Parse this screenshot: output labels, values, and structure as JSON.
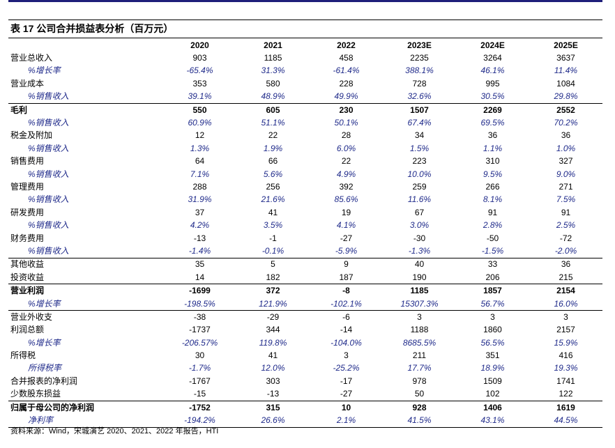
{
  "title": "表 17 公司合并损益表分析（百万元）",
  "columns": [
    "",
    "2020",
    "2021",
    "2022",
    "2023E",
    "2024E",
    "2025E"
  ],
  "rows": [
    {
      "label": "营业总收入",
      "values": [
        "903",
        "1185",
        "458",
        "2235",
        "3264",
        "3637"
      ],
      "type": "normal"
    },
    {
      "label": "%增长率",
      "values": [
        "-65.4%",
        "31.3%",
        "-61.4%",
        "388.1%",
        "46.1%",
        "11.4%"
      ],
      "type": "pct"
    },
    {
      "label": "营业成本",
      "values": [
        "353",
        "580",
        "228",
        "728",
        "995",
        "1084"
      ],
      "type": "normal"
    },
    {
      "label": "%销售收入",
      "values": [
        "39.1%",
        "48.9%",
        "49.9%",
        "32.6%",
        "30.5%",
        "29.8%"
      ],
      "type": "pct"
    },
    {
      "label": "毛利",
      "values": [
        "550",
        "605",
        "230",
        "1507",
        "2269",
        "2552"
      ],
      "type": "bold",
      "sep": true
    },
    {
      "label": "%销售收入",
      "values": [
        "60.9%",
        "51.1%",
        "50.1%",
        "67.4%",
        "69.5%",
        "70.2%"
      ],
      "type": "pct"
    },
    {
      "label": "税金及附加",
      "values": [
        "12",
        "22",
        "28",
        "34",
        "36",
        "36"
      ],
      "type": "normal"
    },
    {
      "label": "%销售收入",
      "values": [
        "1.3%",
        "1.9%",
        "6.0%",
        "1.5%",
        "1.1%",
        "1.0%"
      ],
      "type": "pct"
    },
    {
      "label": "销售费用",
      "values": [
        "64",
        "66",
        "22",
        "223",
        "310",
        "327"
      ],
      "type": "normal"
    },
    {
      "label": "%销售收入",
      "values": [
        "7.1%",
        "5.6%",
        "4.9%",
        "10.0%",
        "9.5%",
        "9.0%"
      ],
      "type": "pct"
    },
    {
      "label": "管理费用",
      "values": [
        "288",
        "256",
        "392",
        "259",
        "266",
        "271"
      ],
      "type": "normal"
    },
    {
      "label": "%销售收入",
      "values": [
        "31.9%",
        "21.6%",
        "85.6%",
        "11.6%",
        "8.1%",
        "7.5%"
      ],
      "type": "pct"
    },
    {
      "label": "研发费用",
      "values": [
        "37",
        "41",
        "19",
        "67",
        "91",
        "91"
      ],
      "type": "normal"
    },
    {
      "label": "%销售收入",
      "values": [
        "4.2%",
        "3.5%",
        "4.1%",
        "3.0%",
        "2.8%",
        "2.5%"
      ],
      "type": "pct"
    },
    {
      "label": "财务费用",
      "values": [
        "-13",
        "-1",
        "-27",
        "-30",
        "-50",
        "-72"
      ],
      "type": "normal"
    },
    {
      "label": "%销售收入",
      "values": [
        "-1.4%",
        "-0.1%",
        "-5.9%",
        "-1.3%",
        "-1.5%",
        "-2.0%"
      ],
      "type": "pct"
    },
    {
      "label": "其他收益",
      "values": [
        "35",
        "5",
        "9",
        "40",
        "33",
        "36"
      ],
      "type": "normal",
      "sep": true
    },
    {
      "label": "投资收益",
      "values": [
        "14",
        "182",
        "187",
        "190",
        "206",
        "215"
      ],
      "type": "normal"
    },
    {
      "label": "营业利润",
      "values": [
        "-1699",
        "372",
        "-8",
        "1185",
        "1857",
        "2154"
      ],
      "type": "bold",
      "sep": true
    },
    {
      "label": "%增长率",
      "values": [
        "-198.5%",
        "121.9%",
        "-102.1%",
        "15307.3%",
        "56.7%",
        "16.0%"
      ],
      "type": "pct"
    },
    {
      "label": "营业外收支",
      "values": [
        "-38",
        "-29",
        "-6",
        "3",
        "3",
        "3"
      ],
      "type": "normal",
      "sep": true
    },
    {
      "label": "利润总额",
      "values": [
        "-1737",
        "344",
        "-14",
        "1188",
        "1860",
        "2157"
      ],
      "type": "normal"
    },
    {
      "label": "%增长率",
      "values": [
        "-206.57%",
        "119.8%",
        "-104.0%",
        "8685.5%",
        "56.5%",
        "15.9%"
      ],
      "type": "pct"
    },
    {
      "label": "所得税",
      "values": [
        "30",
        "41",
        "3",
        "211",
        "351",
        "416"
      ],
      "type": "normal"
    },
    {
      "label": "所得税率",
      "values": [
        "-1.7%",
        "12.0%",
        "-25.2%",
        "17.7%",
        "18.9%",
        "19.3%"
      ],
      "type": "pct"
    },
    {
      "label": "合并报表的净利润",
      "values": [
        "-1767",
        "303",
        "-17",
        "978",
        "1509",
        "1741"
      ],
      "type": "normal"
    },
    {
      "label": "少数股东损益",
      "values": [
        "-15",
        "-13",
        "-27",
        "50",
        "102",
        "122"
      ],
      "type": "normal"
    },
    {
      "label": "归属于母公司的净利润",
      "values": [
        "-1752",
        "315",
        "10",
        "928",
        "1406",
        "1619"
      ],
      "type": "bold",
      "sep": true
    },
    {
      "label": "净利率",
      "values": [
        "-194.2%",
        "26.6%",
        "2.1%",
        "41.5%",
        "43.1%",
        "44.5%"
      ],
      "type": "pct",
      "last": true
    }
  ],
  "source": "资料来源：Wind，宋城演艺 2020、2021、2022 年报告，HTI"
}
